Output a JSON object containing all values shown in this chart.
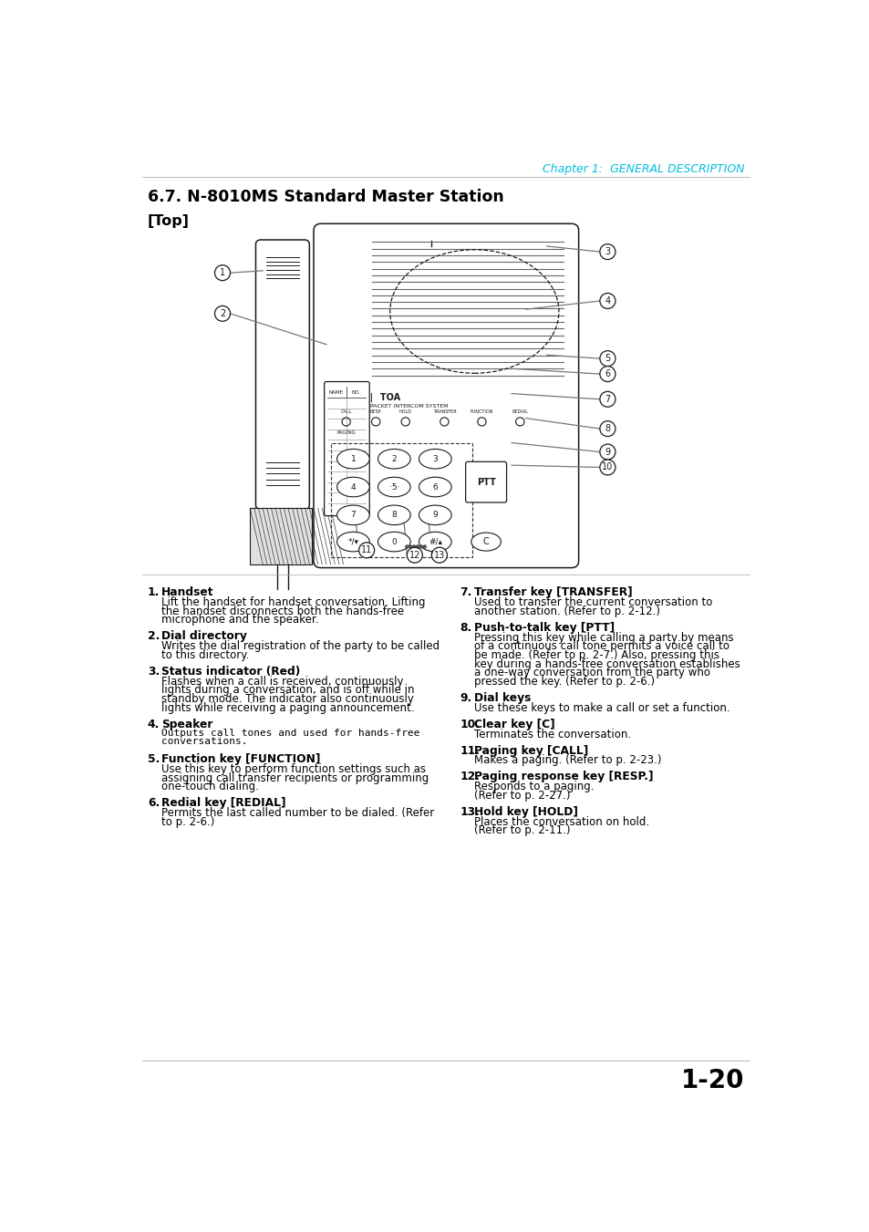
{
  "page_header": "Chapter 1:  GENERAL DESCRIPTION",
  "header_color": "#00BFDF",
  "section_title": "6.7. N-8010MS Standard Master Station",
  "subsection": "[Top]",
  "page_number": "1-20",
  "bg_color": "#ffffff",
  "text_color": "#000000",
  "link_color": "#4169B8",
  "left_items": [
    {
      "num": "1",
      "title": "Handset",
      "body": "Lift the handset for handset conversation. Lifting\nthe handset disconnects both the hands-free\nmicrophone and the speaker."
    },
    {
      "num": "2",
      "title": "Dial directory",
      "body": "Writes the dial registration of the party to be called\nto this directory."
    },
    {
      "num": "3",
      "title": "Status indicator (Red)",
      "body": "Flashes when a call is received, continuously\nlights during a conversation, and is off while in\nstandby mode. The indicator also continuously\nlights while receiving a paging announcement."
    },
    {
      "num": "4",
      "title": "Speaker",
      "body": "Outputs call tones and used for hands-free\nconversations.",
      "mono": true
    },
    {
      "num": "5",
      "title": "Function key [FUNCTION]",
      "body": "Use this key to perform function settings such as\nassigning call transfer recipients or programming\none-touch dialing."
    },
    {
      "num": "6",
      "title": "Redial key [REDIAL]",
      "body": "Permits the last called number to be dialed. (Refer\nto p. 2-6.)"
    }
  ],
  "right_items": [
    {
      "num": "7",
      "title": "Transfer key [TRANSFER]",
      "body": "Used to transfer the current conversation to\nanother station. (Refer to p. 2-12.)"
    },
    {
      "num": "8",
      "title": "Push-to-talk key [PTT]",
      "body": "Pressing this key while calling a party by means\nof a continuous call tone permits a voice call to\nbe made. (Refer to p. 2-7.) Also, pressing this\nkey during a hands-free conversation establishes\na one-way conversation from the party who\npressed the key. (Refer to p. 2-6.)"
    },
    {
      "num": "9",
      "title": "Dial keys",
      "body": "Use these keys to make a call or set a function."
    },
    {
      "num": "10",
      "title": "Clear key [C]",
      "body": "Terminates the conversation."
    },
    {
      "num": "11",
      "title": "Paging key [CALL]",
      "body": "Makes a paging. (Refer to p. 2-23.)"
    },
    {
      "num": "12",
      "title": "Paging response key [RESP.]",
      "body": "Responds to a paging.\n(Refer to p. 2-27.)"
    },
    {
      "num": "13",
      "title": "Hold key [HOLD]",
      "body": "Places the conversation on hold.\n(Refer to p. 2-11.)"
    }
  ]
}
